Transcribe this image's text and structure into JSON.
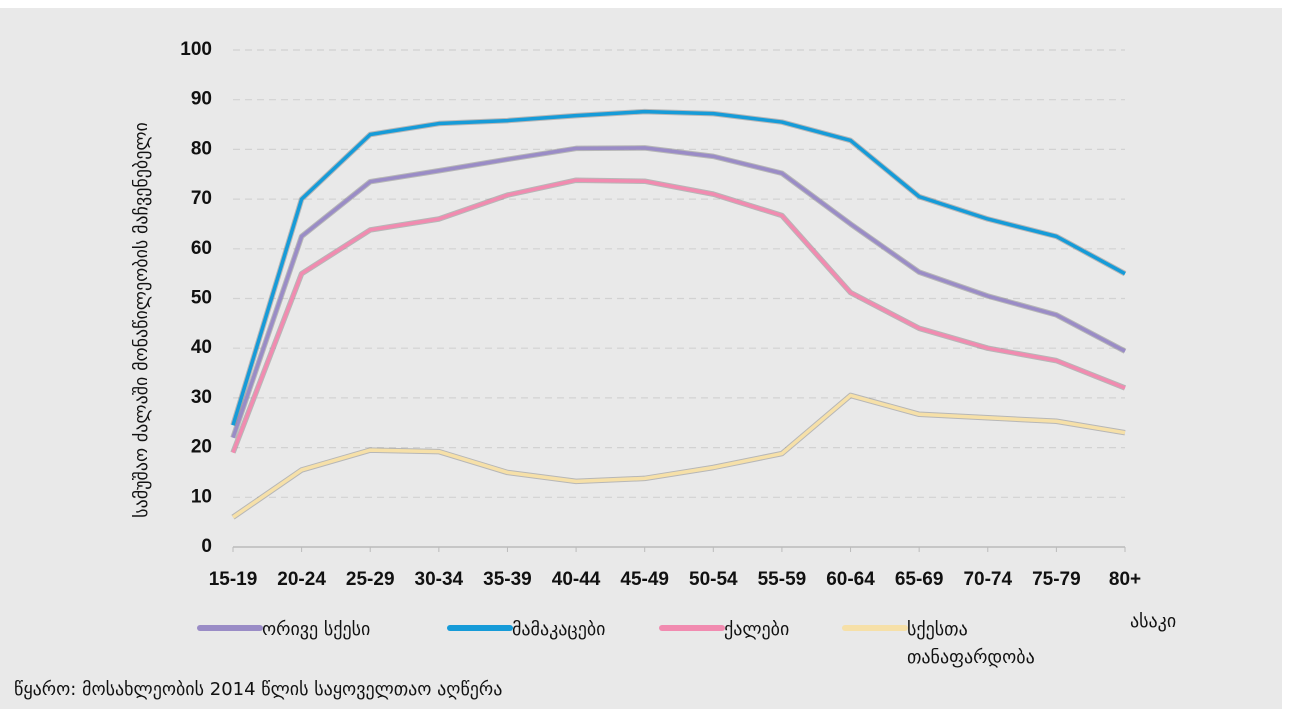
{
  "chart_data": {
    "type": "line",
    "y_axis_label": "სამუშაო ძალაში მონაწილეობის მაჩვენებელი",
    "x_axis_label": "ასაკი",
    "source": "წყარო: მოსახლეობის 2014 წლის საყოველთაო აღწერა",
    "categories": [
      "15-19",
      "20-24",
      "25-29",
      "30-34",
      "35-39",
      "40-44",
      "45-49",
      "50-54",
      "55-59",
      "60-64",
      "65-69",
      "70-74",
      "75-79",
      "80+"
    ],
    "series": [
      {
        "name": "ორივე სქესი",
        "color": "#9a8cc6",
        "values": [
          22,
          62.5,
          73.5,
          75.7,
          78,
          80.2,
          80.3,
          78.6,
          75.2,
          65,
          55.3,
          50.5,
          46.7,
          39.4
        ]
      },
      {
        "name": "მამაკაცები",
        "color": "#169bd8",
        "values": [
          24.5,
          70,
          83,
          85.2,
          85.8,
          86.8,
          87.6,
          87.2,
          85.5,
          81.8,
          70.5,
          66,
          62.5,
          55
        ]
      },
      {
        "name": "ქალები",
        "color": "#f18bb0",
        "values": [
          19,
          55,
          63.8,
          66,
          70.8,
          73.8,
          73.6,
          71,
          66.7,
          51.2,
          44,
          40,
          37.5,
          32
        ]
      },
      {
        "name": "სქესთა თანაფარდობა",
        "color": "#f6e0a8",
        "values": [
          6,
          15.5,
          19.5,
          19.2,
          15,
          13.2,
          13.8,
          16,
          18.8,
          30.5,
          26.7,
          26,
          25.3,
          23
        ]
      }
    ],
    "ylim": [
      0,
      100
    ],
    "yticks": [
      0,
      10,
      20,
      30,
      40,
      50,
      60,
      70,
      80,
      90,
      100
    ],
    "grid": true
  }
}
